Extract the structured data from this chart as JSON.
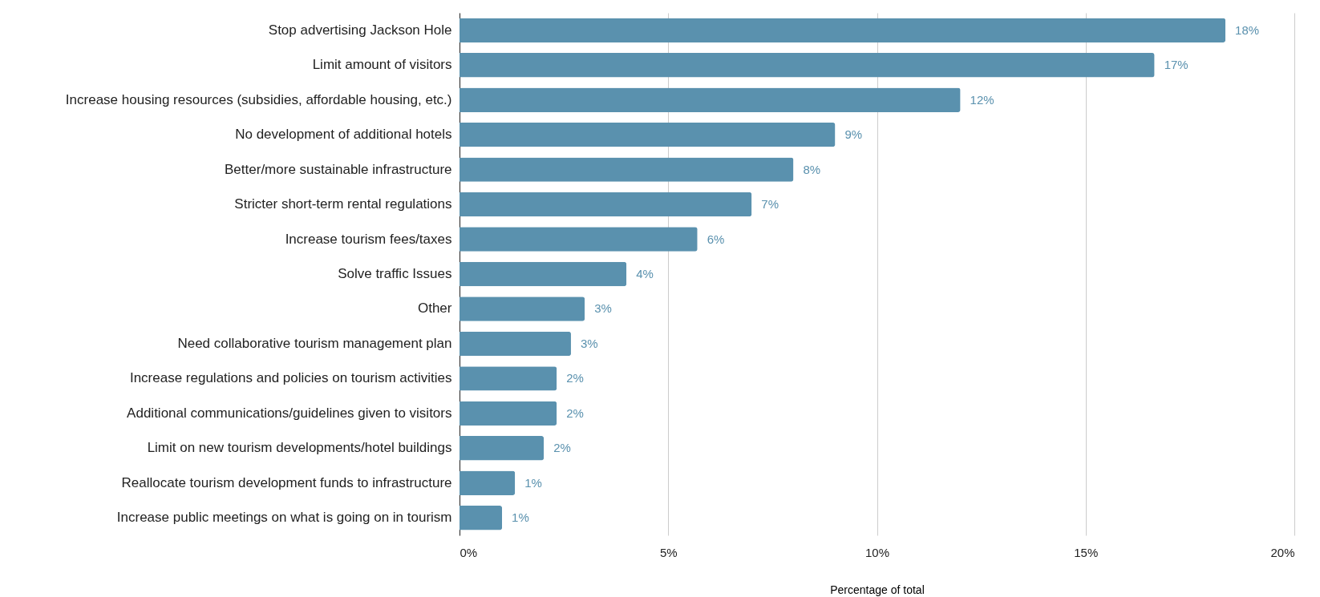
{
  "chart_data": {
    "type": "bar",
    "orientation": "horizontal",
    "xlabel": "Percentage  of total",
    "categories": [
      "Stop advertising Jackson Hole",
      "Limit amount of visitors",
      "Increase housing resources (subsidies, affordable housing, etc.)",
      "No development of additional hotels",
      "Better/more sustainable infrastructure",
      "Stricter short-term rental regulations",
      "Increase tourism fees/taxes",
      "Solve traffic Issues",
      "Other",
      "Need collaborative tourism management plan",
      "Increase regulations and policies on tourism activities",
      "Additional communications/guidelines given to visitors",
      "Limit on new tourism developments/hotel buildings",
      "Reallocate tourism development funds to infrastructure",
      "Increase public meetings on what is going on in tourism"
    ],
    "values": [
      18.35,
      16.65,
      12.0,
      9.0,
      8.0,
      7.0,
      5.7,
      4.0,
      3.0,
      2.67,
      2.33,
      2.33,
      2.02,
      1.33,
      1.02
    ],
    "value_labels": [
      "18%",
      "17%",
      "12%",
      "9%",
      "8%",
      "7%",
      "6%",
      "4%",
      "3%",
      "3%",
      "2%",
      "2%",
      "2%",
      "1%",
      "1%"
    ],
    "color": "#5a91ae",
    "xlim": [
      0,
      20
    ],
    "xticks": [
      {
        "value": 0,
        "label": "0%"
      },
      {
        "value": 5,
        "label": "5%"
      },
      {
        "value": 10,
        "label": "10%"
      },
      {
        "value": 15,
        "label": "15%"
      },
      {
        "value": 20,
        "label": "20%"
      }
    ],
    "grid": "x"
  }
}
